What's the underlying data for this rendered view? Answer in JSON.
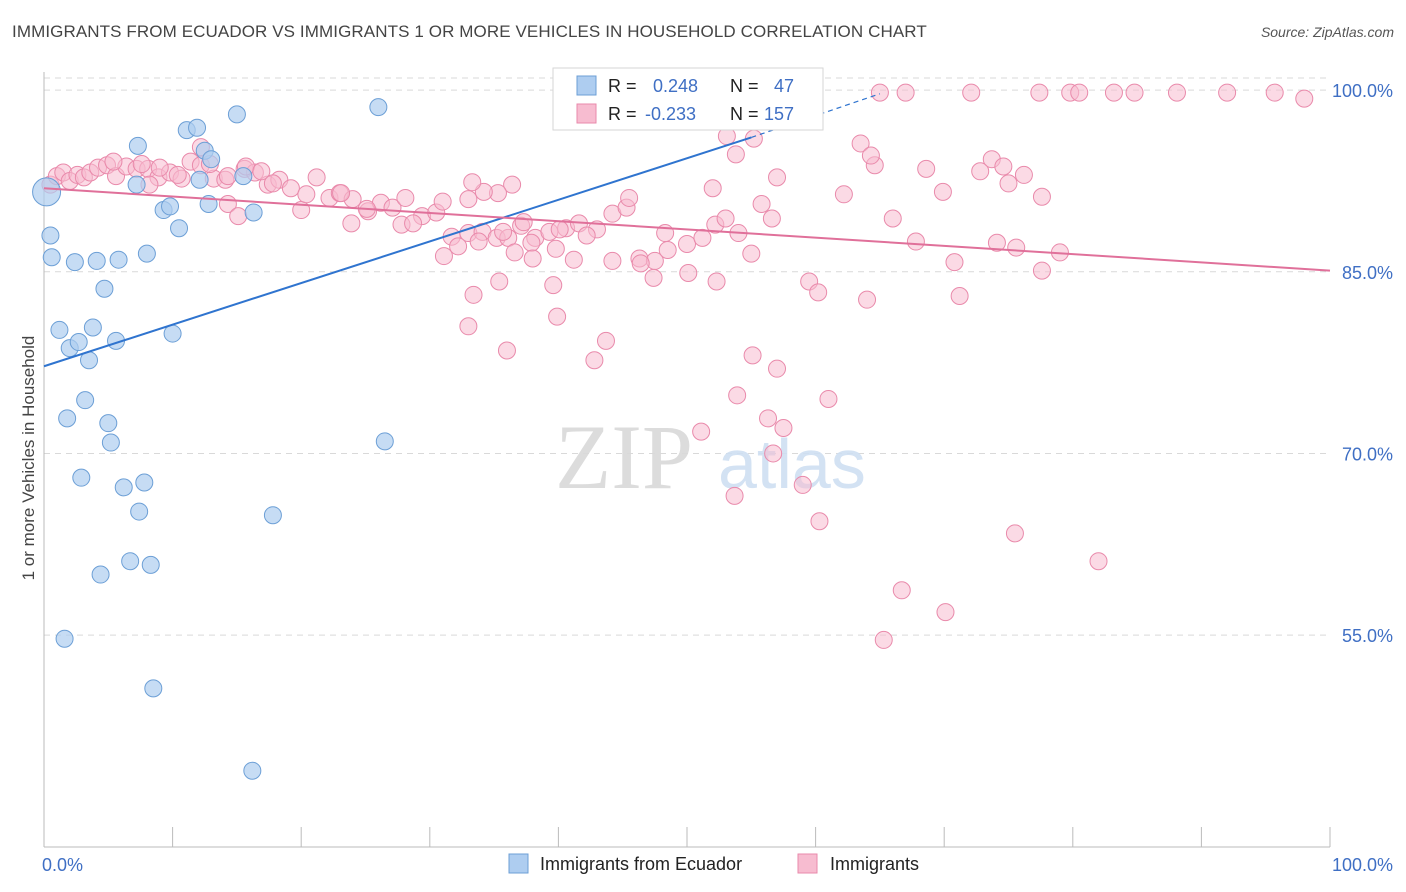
{
  "title": "IMMIGRANTS FROM ECUADOR VS IMMIGRANTS 1 OR MORE VEHICLES IN HOUSEHOLD CORRELATION CHART",
  "source": "Source: ZipAtlas.com",
  "watermark": {
    "zip": "ZIP",
    "atlas": "atlas"
  },
  "colors": {
    "blue_fill": "#aecdf0",
    "blue_stroke": "#6c9fd6",
    "blue_line": "#2f74cf",
    "pink_fill": "#f7bcd0",
    "pink_stroke": "#e98aab",
    "pink_line": "#e0709a",
    "value_text": "#3f6fc4",
    "label_text": "#222222",
    "grid": "#d9d9d9"
  },
  "stats_legend": [
    {
      "r_label": "R =",
      "r_value": "0.248",
      "n_label": "N =",
      "n_value": "47",
      "series": "ecuador"
    },
    {
      "r_label": "R =",
      "r_value": "-0.233",
      "n_label": "N =",
      "n_value": "157",
      "series": "immigrants"
    }
  ],
  "bottom_legend": [
    {
      "label": "Immigrants from Ecuador",
      "series": "ecuador"
    },
    {
      "label": "Immigrants",
      "series": "immigrants"
    }
  ],
  "chart_data": {
    "type": "scatter",
    "xlabel": "",
    "ylabel": "1 or more Vehicles in Household",
    "xlim": [
      0,
      100
    ],
    "ylim": [
      37.5,
      101.5
    ],
    "x_tick_labels": [
      {
        "value": 0,
        "label": "0.0%"
      },
      {
        "value": 100,
        "label": "100.0%"
      }
    ],
    "y_tick_labels": [
      {
        "value": 55,
        "label": "55.0%"
      },
      {
        "value": 70,
        "label": "70.0%"
      },
      {
        "value": 85,
        "label": "85.0%"
      },
      {
        "value": 100,
        "label": "100.0%"
      }
    ],
    "grid": true,
    "series": [
      {
        "name": "Immigrants from Ecuador",
        "color": "#aecdf0",
        "points": [
          [
            0.2,
            91.6
          ],
          [
            0.5,
            88.0
          ],
          [
            0.6,
            86.2
          ],
          [
            2.4,
            85.8
          ],
          [
            4.1,
            85.9
          ],
          [
            5.8,
            86.0
          ],
          [
            8.0,
            86.5
          ],
          [
            4.7,
            83.6
          ],
          [
            1.2,
            80.2
          ],
          [
            3.8,
            80.4
          ],
          [
            2.0,
            78.7
          ],
          [
            2.7,
            79.2
          ],
          [
            5.6,
            79.3
          ],
          [
            10.0,
            79.9
          ],
          [
            3.5,
            77.7
          ],
          [
            3.2,
            74.4
          ],
          [
            1.8,
            72.9
          ],
          [
            5.0,
            72.5
          ],
          [
            5.2,
            70.9
          ],
          [
            2.9,
            68.0
          ],
          [
            6.2,
            67.2
          ],
          [
            7.8,
            67.6
          ],
          [
            7.4,
            65.2
          ],
          [
            17.8,
            64.9
          ],
          [
            6.7,
            61.1
          ],
          [
            8.3,
            60.8
          ],
          [
            4.4,
            60.0
          ],
          [
            1.6,
            54.7
          ],
          [
            8.5,
            50.6
          ],
          [
            16.2,
            43.8
          ],
          [
            26.5,
            71.0
          ],
          [
            15.0,
            98.0
          ],
          [
            26.0,
            98.6
          ],
          [
            11.1,
            96.7
          ],
          [
            11.9,
            96.9
          ],
          [
            7.3,
            95.4
          ],
          [
            12.5,
            95.0
          ],
          [
            13.0,
            94.3
          ],
          [
            12.1,
            92.6
          ],
          [
            15.5,
            92.9
          ],
          [
            7.2,
            92.2
          ],
          [
            9.3,
            90.1
          ],
          [
            9.8,
            90.4
          ],
          [
            12.8,
            90.6
          ],
          [
            16.3,
            89.9
          ],
          [
            10.5,
            88.6
          ],
          [
            59.8,
            100.0
          ]
        ]
      },
      {
        "name": "Immigrants",
        "color": "#f7bcd0",
        "points": [
          [
            0.5,
            92.2
          ],
          [
            1.0,
            92.9
          ],
          [
            1.5,
            93.2
          ],
          [
            2.0,
            92.5
          ],
          [
            2.6,
            93.0
          ],
          [
            3.1,
            92.8
          ],
          [
            3.6,
            93.2
          ],
          [
            4.2,
            93.6
          ],
          [
            4.9,
            93.8
          ],
          [
            5.6,
            92.9
          ],
          [
            6.4,
            93.7
          ],
          [
            7.2,
            93.5
          ],
          [
            8.1,
            93.5
          ],
          [
            8.9,
            92.8
          ],
          [
            9.8,
            93.2
          ],
          [
            10.7,
            92.7
          ],
          [
            11.4,
            94.1
          ],
          [
            12.2,
            93.8
          ],
          [
            13.2,
            92.7
          ],
          [
            14.1,
            92.6
          ],
          [
            15.6,
            93.5
          ],
          [
            16.4,
            93.2
          ],
          [
            17.4,
            92.2
          ],
          [
            18.3,
            92.6
          ],
          [
            19.2,
            91.9
          ],
          [
            20.0,
            90.1
          ],
          [
            21.2,
            92.8
          ],
          [
            22.2,
            91.1
          ],
          [
            23.0,
            91.5
          ],
          [
            24.0,
            91.0
          ],
          [
            25.2,
            90.0
          ],
          [
            26.2,
            90.7
          ],
          [
            27.1,
            90.3
          ],
          [
            28.1,
            91.1
          ],
          [
            29.4,
            89.6
          ],
          [
            30.5,
            89.9
          ],
          [
            31.7,
            87.9
          ],
          [
            33.0,
            88.2
          ],
          [
            34.1,
            88.3
          ],
          [
            35.2,
            87.8
          ],
          [
            36.1,
            87.8
          ],
          [
            37.1,
            88.8
          ],
          [
            38.2,
            87.8
          ],
          [
            39.3,
            88.3
          ],
          [
            40.6,
            88.6
          ],
          [
            41.6,
            89.0
          ],
          [
            43.0,
            88.5
          ],
          [
            44.2,
            89.8
          ],
          [
            45.3,
            90.3
          ],
          [
            46.3,
            86.1
          ],
          [
            47.5,
            85.9
          ],
          [
            48.5,
            86.8
          ],
          [
            50.0,
            87.3
          ],
          [
            51.2,
            87.8
          ],
          [
            52.2,
            88.9
          ],
          [
            53.0,
            89.4
          ],
          [
            54.0,
            88.2
          ],
          [
            45.5,
            91.1
          ],
          [
            9.0,
            93.6
          ],
          [
            8.2,
            92.2
          ],
          [
            7.6,
            93.9
          ],
          [
            5.4,
            94.1
          ],
          [
            10.4,
            93.0
          ],
          [
            12.2,
            95.3
          ],
          [
            12.9,
            93.9
          ],
          [
            14.3,
            92.9
          ],
          [
            15.7,
            93.7
          ],
          [
            16.9,
            93.3
          ],
          [
            17.8,
            92.3
          ],
          [
            14.3,
            90.6
          ],
          [
            15.1,
            89.6
          ],
          [
            20.4,
            91.4
          ],
          [
            23.1,
            91.5
          ],
          [
            25.1,
            90.2
          ],
          [
            27.8,
            88.9
          ],
          [
            31.0,
            90.8
          ],
          [
            33.0,
            91.0
          ],
          [
            35.7,
            88.3
          ],
          [
            37.9,
            87.4
          ],
          [
            39.8,
            86.9
          ],
          [
            41.2,
            86.0
          ],
          [
            44.2,
            85.9
          ],
          [
            46.4,
            85.7
          ],
          [
            47.4,
            84.5
          ],
          [
            50.1,
            84.9
          ],
          [
            52.3,
            84.2
          ],
          [
            37.3,
            89.1
          ],
          [
            36.4,
            92.2
          ],
          [
            35.3,
            91.5
          ],
          [
            34.2,
            91.6
          ],
          [
            33.3,
            92.4
          ],
          [
            32.2,
            87.1
          ],
          [
            31.1,
            86.3
          ],
          [
            33.8,
            87.5
          ],
          [
            36.6,
            86.6
          ],
          [
            38.0,
            86.1
          ],
          [
            40.1,
            88.5
          ],
          [
            42.2,
            88.0
          ],
          [
            48.3,
            88.2
          ],
          [
            55.0,
            86.5
          ],
          [
            59.5,
            84.2
          ],
          [
            60.2,
            83.3
          ],
          [
            64.0,
            82.7
          ],
          [
            62.2,
            91.4
          ],
          [
            64.6,
            93.8
          ],
          [
            66.0,
            89.4
          ],
          [
            71.2,
            83.0
          ],
          [
            70.8,
            85.8
          ],
          [
            67.8,
            87.5
          ],
          [
            74.1,
            87.4
          ],
          [
            75.6,
            87.0
          ],
          [
            79.0,
            86.6
          ],
          [
            77.6,
            85.1
          ],
          [
            63.5,
            95.6
          ],
          [
            64.3,
            94.6
          ],
          [
            68.6,
            93.5
          ],
          [
            69.9,
            91.6
          ],
          [
            72.8,
            93.3
          ],
          [
            73.7,
            94.3
          ],
          [
            74.6,
            93.7
          ],
          [
            75.0,
            92.3
          ],
          [
            76.2,
            93.0
          ],
          [
            77.6,
            91.2
          ],
          [
            53.1,
            96.2
          ],
          [
            55.2,
            96.0
          ],
          [
            57.0,
            92.8
          ],
          [
            55.8,
            90.6
          ],
          [
            56.6,
            89.4
          ],
          [
            52.0,
            91.9
          ],
          [
            53.8,
            94.7
          ],
          [
            23.9,
            89.0
          ],
          [
            28.7,
            89.0
          ],
          [
            33.4,
            83.1
          ],
          [
            35.4,
            84.2
          ],
          [
            39.6,
            83.9
          ],
          [
            39.9,
            81.3
          ],
          [
            33.0,
            80.5
          ],
          [
            43.7,
            79.3
          ],
          [
            36.0,
            78.5
          ],
          [
            42.8,
            77.7
          ],
          [
            55.1,
            78.1
          ],
          [
            57.0,
            77.0
          ],
          [
            53.9,
            74.8
          ],
          [
            56.3,
            72.9
          ],
          [
            61.0,
            74.5
          ],
          [
            57.5,
            72.1
          ],
          [
            51.1,
            71.8
          ],
          [
            56.7,
            70.0
          ],
          [
            59.0,
            67.4
          ],
          [
            53.7,
            66.5
          ],
          [
            60.3,
            64.4
          ],
          [
            75.5,
            63.4
          ],
          [
            82.0,
            61.1
          ],
          [
            66.7,
            58.7
          ],
          [
            70.1,
            56.9
          ],
          [
            65.3,
            54.6
          ],
          [
            98.0,
            99.3
          ],
          [
            65.0,
            99.8
          ],
          [
            67.0,
            99.8
          ],
          [
            72.1,
            99.8
          ],
          [
            77.4,
            99.8
          ],
          [
            79.8,
            99.8
          ],
          [
            83.2,
            99.8
          ],
          [
            88.1,
            99.8
          ],
          [
            92.0,
            99.8
          ],
          [
            95.7,
            99.8
          ],
          [
            80.5,
            99.8
          ],
          [
            84.8,
            99.8
          ]
        ]
      }
    ],
    "trendlines": [
      {
        "series": "Immigrants from Ecuador",
        "from": [
          0,
          77.2
        ],
        "to": [
          55,
          96.1
        ],
        "dashed_to": [
          65,
          99.7
        ]
      },
      {
        "series": "Immigrants",
        "from": [
          0,
          91.9
        ],
        "to": [
          100,
          85.1
        ]
      }
    ]
  }
}
